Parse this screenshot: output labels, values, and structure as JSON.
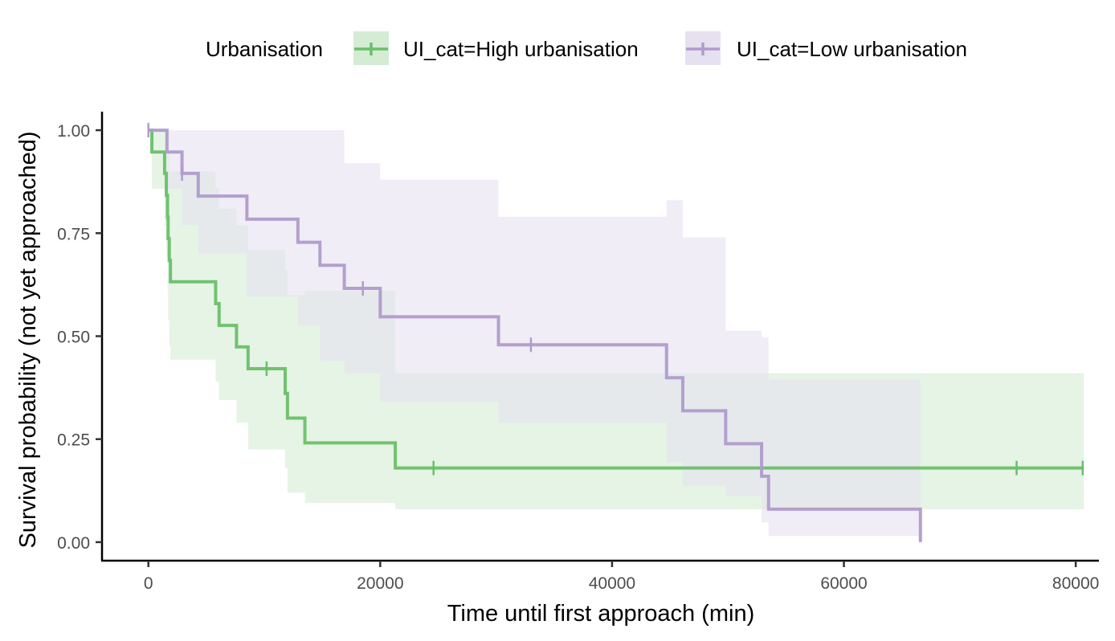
{
  "chart_data": {
    "type": "line",
    "subtype": "kaplan-meier survival curve with confidence bands",
    "xlabel": "Time until first approach (min)",
    "ylabel": "Survival probability (not yet approached)",
    "xlim": [
      -4000,
      82000
    ],
    "ylim": [
      -0.045,
      1.045
    ],
    "xticks": [
      0,
      20000,
      40000,
      60000,
      80000
    ],
    "xtick_labels": [
      "0",
      "20000",
      "40000",
      "60000",
      "80000"
    ],
    "yticks": [
      0,
      0.25,
      0.5,
      0.75,
      1.0
    ],
    "ytick_labels": [
      "0.00",
      "0.25",
      "0.50",
      "0.75",
      "1.00"
    ],
    "grid": false,
    "legend": {
      "title": "Urbanisation",
      "position": "top",
      "entries": [
        "UI_cat=High urbanisation",
        "UI_cat=Low urbanisation"
      ]
    },
    "series": [
      {
        "name": "UI_cat=High urbanisation",
        "color": "#6abf69",
        "fill_color": "#d4ecd4",
        "steps": [
          {
            "time": 0,
            "surv": 1.0,
            "lower": 1.0,
            "upper": 1.0
          },
          {
            "time": 300,
            "surv": 0.947,
            "lower": 0.858,
            "upper": 1.0
          },
          {
            "time": 1400,
            "surv": 0.895,
            "lower": 0.769,
            "upper": 1.0
          },
          {
            "time": 1550,
            "surv": 0.842,
            "lower": 0.692,
            "upper": 1.0
          },
          {
            "time": 1650,
            "surv": 0.789,
            "lower": 0.615,
            "upper": 1.0
          },
          {
            "time": 1700,
            "surv": 0.737,
            "lower": 0.538,
            "upper": 1.0
          },
          {
            "time": 1800,
            "surv": 0.684,
            "lower": 0.476,
            "upper": 0.9
          },
          {
            "time": 1900,
            "surv": 0.632,
            "lower": 0.443,
            "upper": 0.9
          },
          {
            "time": 5800,
            "surv": 0.579,
            "lower": 0.39,
            "upper": 0.86
          },
          {
            "time": 6100,
            "surv": 0.526,
            "lower": 0.345,
            "upper": 0.81
          },
          {
            "time": 7600,
            "surv": 0.474,
            "lower": 0.29,
            "upper": 0.77
          },
          {
            "time": 8600,
            "surv": 0.421,
            "lower": 0.225,
            "upper": 0.71
          },
          {
            "time": 11800,
            "surv": 0.361,
            "lower": 0.18,
            "upper": 0.66
          },
          {
            "time": 12000,
            "surv": 0.301,
            "lower": 0.12,
            "upper": 0.6
          },
          {
            "time": 13500,
            "surv": 0.241,
            "lower": 0.095,
            "upper": 0.61
          },
          {
            "time": 21300,
            "surv": 0.18,
            "lower": 0.08,
            "upper": 0.41
          }
        ],
        "end_time": 80700,
        "censored_times": [
          10200,
          24600,
          74900,
          80600
        ]
      },
      {
        "name": "UI_cat=Low urbanisation",
        "color": "#b09bcc",
        "fill_color": "#e6e1f0",
        "steps": [
          {
            "time": 0,
            "surv": 1.0,
            "lower": 1.0,
            "upper": 1.0
          },
          {
            "time": 1600,
            "surv": 0.947,
            "lower": 0.858,
            "upper": 1.0
          },
          {
            "time": 2900,
            "surv": 0.895,
            "lower": 0.769,
            "upper": 1.0
          },
          {
            "time": 4300,
            "surv": 0.84,
            "lower": 0.7,
            "upper": 1.0
          },
          {
            "time": 8500,
            "surv": 0.784,
            "lower": 0.596,
            "upper": 1.0
          },
          {
            "time": 12900,
            "surv": 0.728,
            "lower": 0.525,
            "upper": 1.0
          },
          {
            "time": 14800,
            "surv": 0.672,
            "lower": 0.44,
            "upper": 1.0
          },
          {
            "time": 16900,
            "surv": 0.616,
            "lower": 0.41,
            "upper": 0.92
          },
          {
            "time": 20000,
            "surv": 0.547,
            "lower": 0.34,
            "upper": 0.88
          },
          {
            "time": 30200,
            "surv": 0.479,
            "lower": 0.29,
            "upper": 0.79
          },
          {
            "time": 44700,
            "surv": 0.399,
            "lower": 0.194,
            "upper": 0.83
          },
          {
            "time": 46100,
            "surv": 0.319,
            "lower": 0.137,
            "upper": 0.74
          },
          {
            "time": 49800,
            "surv": 0.239,
            "lower": 0.111,
            "upper": 0.513
          },
          {
            "time": 52900,
            "surv": 0.16,
            "lower": 0.048,
            "upper": 0.497
          },
          {
            "time": 53500,
            "surv": 0.08,
            "lower": 0.015,
            "upper": 0.395
          },
          {
            "time": 66600,
            "surv": 0.0,
            "lower": 0.0,
            "upper": 0.0
          }
        ],
        "end_time": 66600,
        "censored_times": [
          0,
          2900,
          18500,
          33000
        ]
      }
    ]
  }
}
